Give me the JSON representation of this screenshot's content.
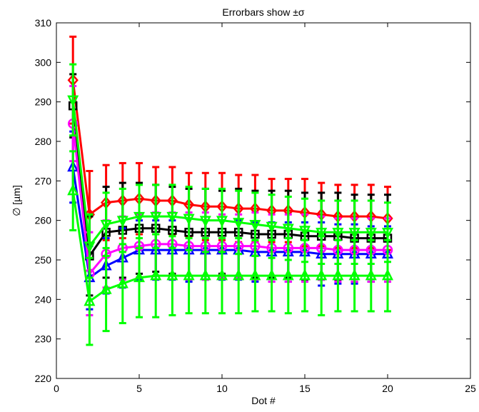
{
  "chart_data": {
    "type": "line",
    "title": "Errorbars show ±σ",
    "xlabel": "Dot #",
    "ylabel": "∅ [µm]",
    "xlim": [
      0,
      25
    ],
    "ylim": [
      220,
      310
    ],
    "xticks": [
      0,
      5,
      10,
      15,
      20,
      25
    ],
    "yticks": [
      220,
      230,
      240,
      250,
      260,
      270,
      280,
      290,
      300,
      310
    ],
    "grid": false,
    "legend": "none",
    "x": [
      1,
      2,
      3,
      4,
      5,
      6,
      7,
      8,
      9,
      10,
      11,
      12,
      13,
      14,
      15,
      16,
      17,
      18,
      19,
      20
    ],
    "series": [
      {
        "color": "#ff0000",
        "marker": "diamond",
        "values": [
          295.5,
          261.5,
          264.5,
          265.0,
          265.5,
          265.0,
          265.0,
          264.0,
          263.5,
          263.5,
          263.0,
          263.0,
          262.5,
          262.5,
          262.0,
          261.5,
          261.0,
          261.0,
          261.0,
          260.5
        ],
        "errors": [
          11.0,
          11.0,
          9.5,
          9.5,
          9.0,
          8.5,
          8.5,
          8.0,
          8.5,
          8.5,
          8.5,
          8.5,
          8.0,
          8.0,
          8.5,
          8.0,
          8.0,
          8.0,
          8.0,
          8.0
        ]
      },
      {
        "color": "#000000",
        "marker": "square",
        "values": [
          289.0,
          251.0,
          257.0,
          257.5,
          258.0,
          258.0,
          257.5,
          257.0,
          257.0,
          257.0,
          257.0,
          256.5,
          256.5,
          256.5,
          256.0,
          256.0,
          256.0,
          255.5,
          255.5,
          255.5
        ],
        "errors": [
          8.0,
          10.0,
          11.5,
          12.0,
          11.5,
          11.0,
          11.0,
          11.0,
          11.0,
          10.5,
          11.0,
          11.0,
          11.0,
          11.0,
          11.0,
          11.0,
          11.0,
          11.0,
          11.0,
          11.0
        ]
      },
      {
        "color": "#0000ff",
        "marker": "triangle-up",
        "values": [
          273.5,
          245.5,
          248.5,
          250.5,
          252.5,
          252.5,
          252.5,
          252.5,
          252.5,
          252.5,
          252.5,
          252.0,
          252.0,
          252.0,
          252.0,
          251.5,
          251.5,
          251.5,
          251.5,
          251.5
        ],
        "errors": [
          9.0,
          8.0,
          7.0,
          7.5,
          7.5,
          7.5,
          7.5,
          8.0,
          7.5,
          7.5,
          7.5,
          7.5,
          7.5,
          7.5,
          7.5,
          8.0,
          7.5,
          7.5,
          7.0,
          7.0
        ]
      },
      {
        "color": "#ff00ff",
        "marker": "circle",
        "values": [
          284.5,
          246.5,
          251.5,
          253.0,
          253.5,
          254.0,
          254.0,
          253.5,
          253.5,
          253.5,
          253.5,
          253.5,
          253.0,
          253.0,
          253.0,
          253.0,
          252.5,
          252.5,
          252.5,
          252.5
        ],
        "errors": [
          9.5,
          10.5,
          8.5,
          8.0,
          8.0,
          8.0,
          8.0,
          8.5,
          8.5,
          8.0,
          8.0,
          8.5,
          8.5,
          8.5,
          8.5,
          8.0,
          8.0,
          8.0,
          8.0,
          8.0
        ]
      },
      {
        "color": "#00ff00",
        "marker": "triangle-down",
        "values": [
          290.5,
          253.5,
          259.0,
          260.0,
          261.0,
          261.0,
          261.0,
          260.5,
          260.0,
          260.0,
          259.5,
          259.0,
          258.5,
          258.0,
          257.5,
          257.0,
          257.0,
          257.0,
          257.0,
          257.0
        ],
        "errors": [
          9.0,
          8.0,
          8.0,
          8.0,
          8.0,
          8.0,
          8.0,
          8.0,
          8.0,
          8.0,
          8.0,
          8.0,
          8.0,
          8.0,
          8.0,
          8.0,
          8.0,
          8.0,
          8.0,
          7.5
        ]
      },
      {
        "color": "#00ff00",
        "marker": "triangle-up",
        "values": [
          267.5,
          239.5,
          242.5,
          244.0,
          245.5,
          246.0,
          246.0,
          246.0,
          246.0,
          246.0,
          246.0,
          246.0,
          246.0,
          246.0,
          246.0,
          246.0,
          246.0,
          246.0,
          246.0,
          246.0
        ],
        "errors": [
          10.0,
          11.0,
          10.5,
          10.0,
          10.0,
          10.5,
          10.0,
          9.5,
          9.5,
          9.5,
          9.5,
          9.0,
          9.0,
          9.5,
          9.0,
          10.0,
          9.0,
          9.0,
          9.0,
          9.0
        ]
      }
    ]
  }
}
